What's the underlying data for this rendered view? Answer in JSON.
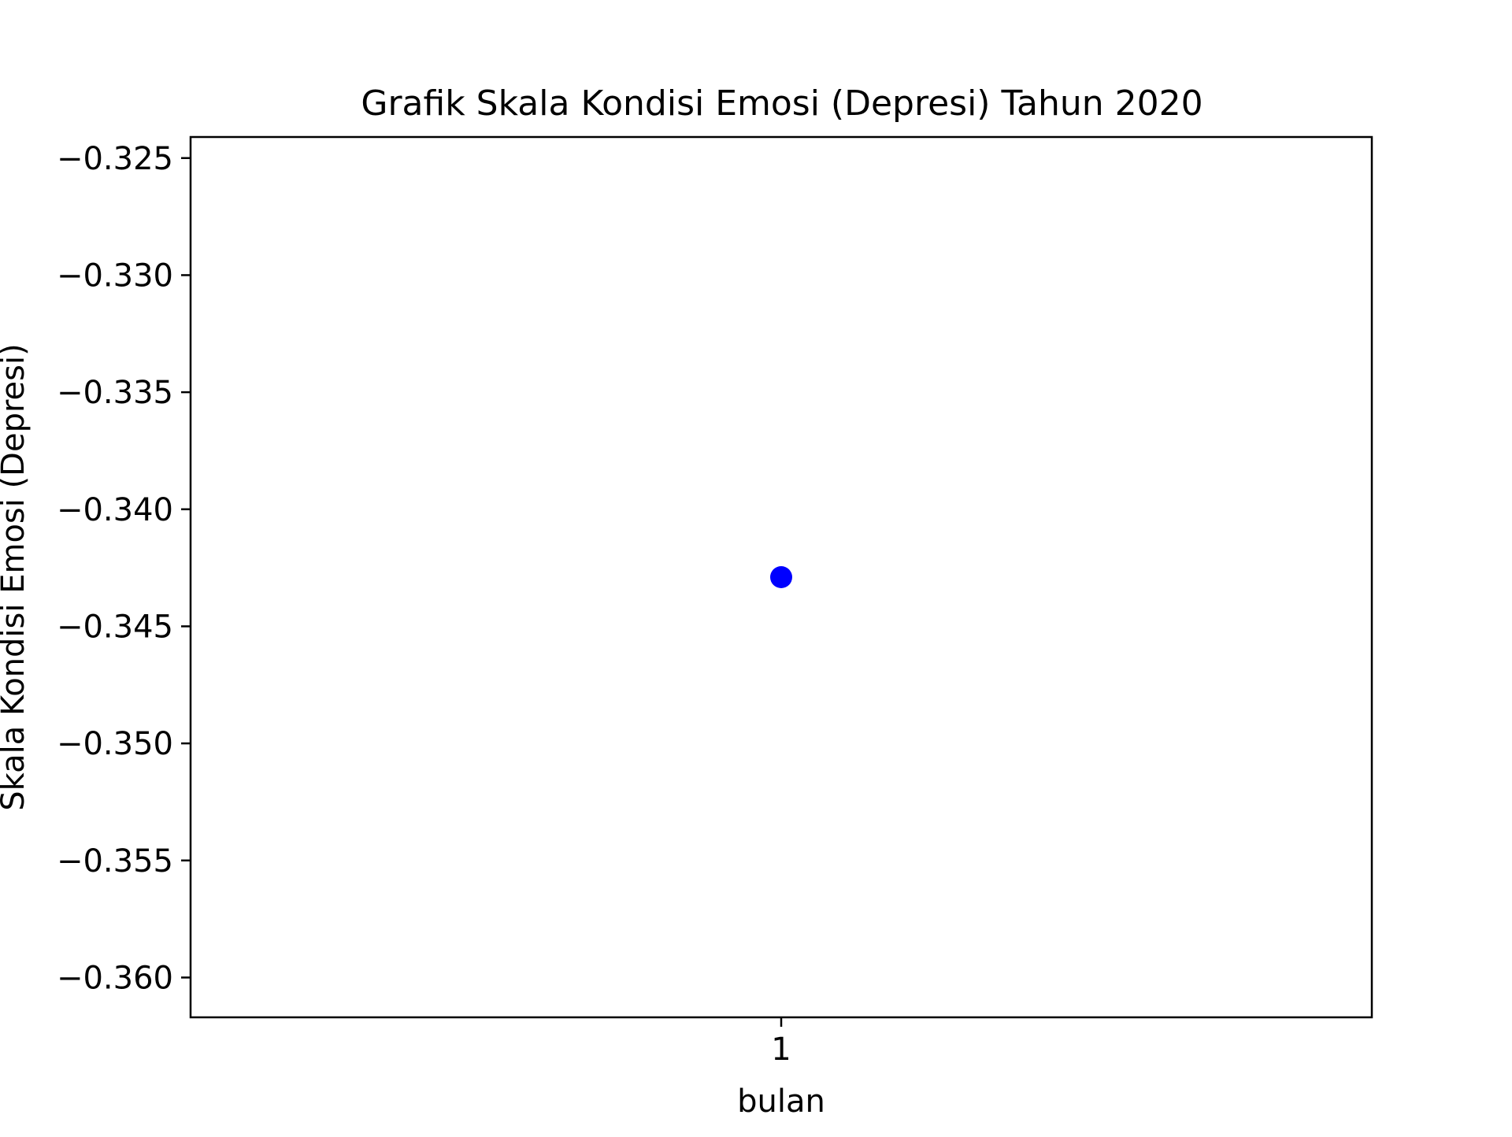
{
  "chart_data": {
    "type": "scatter",
    "title": "Grafik Skala Kondisi Emosi (Depresi) Tahun 2020",
    "xlabel": "bulan",
    "ylabel": "Skala Kondisi Emosi (Depresi)",
    "x": [
      1
    ],
    "y": [
      -0.3429
    ],
    "xticks": [
      "1"
    ],
    "xlim": [
      0.945,
      1.055
    ],
    "yticks": [
      "−0.325",
      "−0.330",
      "−0.335",
      "−0.340",
      "−0.345",
      "−0.350",
      "−0.355",
      "−0.360"
    ],
    "ytick_values": [
      -0.325,
      -0.33,
      -0.335,
      -0.34,
      -0.345,
      -0.35,
      -0.355,
      -0.36
    ],
    "ylim": [
      -0.3617,
      -0.3241
    ],
    "grid": false,
    "marker_color": "#0000ff"
  }
}
